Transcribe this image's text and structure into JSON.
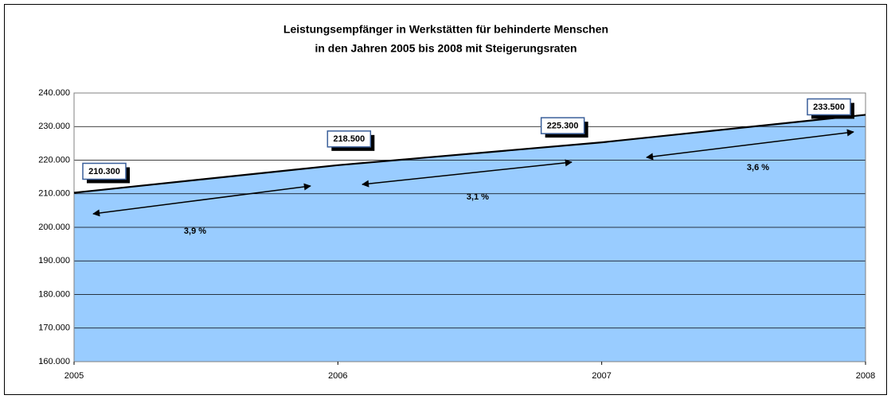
{
  "chart_data": {
    "type": "area",
    "title": "Leistungsempfänger in Werkstätten für behinderte Menschen",
    "subtitle": "in den Jahren 2005 bis 2008 mit Steigerungsraten",
    "x": [
      2005,
      2006,
      2007,
      2008
    ],
    "values": [
      210300,
      218500,
      225300,
      233500
    ],
    "value_labels": [
      "210.300",
      "218.500",
      "225.300",
      "233.500"
    ],
    "color": "#99ccff",
    "xlim": [
      2005,
      2008
    ],
    "xticks": [
      2005,
      2006,
      2007,
      2008
    ],
    "ylim": [
      160000,
      240000
    ],
    "yticks": [
      {
        "value": 160000,
        "label": "160.000"
      },
      {
        "value": 170000,
        "label": "170.000"
      },
      {
        "value": 180000,
        "label": "180.000"
      },
      {
        "value": 190000,
        "label": "190.000"
      },
      {
        "value": 200000,
        "label": "200.000"
      },
      {
        "value": 210000,
        "label": "210.000"
      },
      {
        "value": 220000,
        "label": "220.000"
      },
      {
        "value": 230000,
        "label": "230.000"
      },
      {
        "value": 240000,
        "label": "240.000"
      }
    ],
    "grid": true,
    "annotations": [
      "3,9 %",
      "3,1 %",
      "3,6 %"
    ]
  }
}
